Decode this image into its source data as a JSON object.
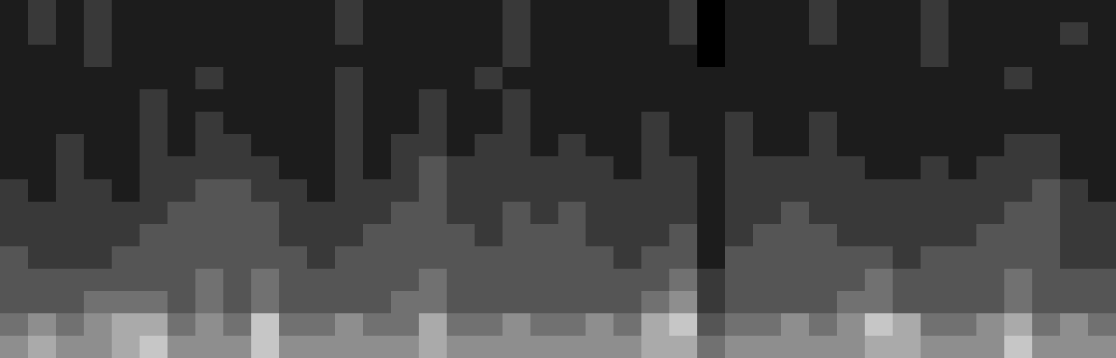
{
  "chart_data": {
    "type": "heatmap",
    "tick_labels": false,
    "zlim": [
      0,
      9
    ],
    "colors": [
      "#000000",
      "#ffffff"
    ],
    "cells": [
      [
        1,
        2,
        1,
        2,
        1,
        1,
        1,
        1,
        1,
        1,
        1,
        1,
        2,
        1,
        1,
        1,
        1,
        1,
        2,
        1,
        1,
        1,
        1,
        1,
        2,
        0,
        1,
        1,
        1,
        2,
        1,
        1,
        1,
        2,
        1,
        1,
        1,
        1,
        1,
        1
      ],
      [
        1,
        2,
        1,
        2,
        1,
        1,
        1,
        1,
        1,
        1,
        1,
        1,
        2,
        1,
        1,
        1,
        1,
        1,
        2,
        1,
        1,
        1,
        1,
        1,
        2,
        0,
        1,
        1,
        1,
        2,
        1,
        1,
        1,
        2,
        1,
        1,
        1,
        1,
        2,
        1
      ],
      [
        1,
        1,
        1,
        2,
        1,
        1,
        1,
        1,
        1,
        1,
        1,
        1,
        1,
        1,
        1,
        1,
        1,
        1,
        2,
        1,
        1,
        1,
        1,
        1,
        1,
        0,
        1,
        1,
        1,
        1,
        1,
        1,
        1,
        2,
        1,
        1,
        1,
        1,
        1,
        1
      ],
      [
        1,
        1,
        1,
        1,
        1,
        1,
        1,
        2,
        1,
        1,
        1,
        1,
        2,
        1,
        1,
        1,
        1,
        2,
        1,
        1,
        1,
        1,
        1,
        1,
        1,
        1,
        1,
        1,
        1,
        1,
        1,
        1,
        1,
        1,
        1,
        1,
        2,
        1,
        1,
        1
      ],
      [
        1,
        1,
        1,
        1,
        1,
        2,
        1,
        1,
        1,
        1,
        1,
        1,
        2,
        1,
        1,
        2,
        1,
        1,
        2,
        1,
        1,
        1,
        1,
        1,
        1,
        1,
        1,
        1,
        1,
        1,
        1,
        1,
        1,
        1,
        1,
        1,
        1,
        1,
        1,
        1
      ],
      [
        1,
        1,
        1,
        1,
        1,
        2,
        1,
        2,
        1,
        1,
        1,
        1,
        2,
        1,
        1,
        2,
        1,
        1,
        2,
        1,
        1,
        1,
        1,
        2,
        1,
        1,
        2,
        1,
        1,
        2,
        1,
        1,
        1,
        1,
        1,
        1,
        1,
        1,
        1,
        1
      ],
      [
        1,
        1,
        2,
        1,
        1,
        2,
        1,
        2,
        2,
        1,
        1,
        1,
        2,
        1,
        2,
        2,
        1,
        2,
        2,
        1,
        2,
        1,
        1,
        2,
        1,
        1,
        2,
        1,
        1,
        2,
        1,
        1,
        1,
        1,
        1,
        1,
        2,
        2,
        1,
        1
      ],
      [
        1,
        1,
        2,
        1,
        1,
        2,
        2,
        2,
        2,
        2,
        1,
        1,
        2,
        1,
        2,
        3,
        2,
        2,
        2,
        2,
        2,
        2,
        1,
        2,
        2,
        1,
        2,
        2,
        2,
        2,
        2,
        1,
        1,
        2,
        1,
        2,
        2,
        2,
        1,
        1
      ],
      [
        2,
        1,
        2,
        2,
        1,
        2,
        2,
        3,
        3,
        2,
        2,
        1,
        2,
        2,
        2,
        3,
        2,
        2,
        2,
        2,
        2,
        2,
        2,
        2,
        2,
        1,
        2,
        2,
        2,
        2,
        2,
        2,
        2,
        2,
        2,
        2,
        2,
        3,
        2,
        1
      ],
      [
        2,
        2,
        2,
        2,
        2,
        2,
        3,
        3,
        3,
        3,
        2,
        2,
        2,
        2,
        3,
        3,
        2,
        2,
        3,
        2,
        3,
        2,
        2,
        2,
        2,
        1,
        2,
        2,
        3,
        2,
        2,
        2,
        2,
        2,
        2,
        2,
        3,
        3,
        2,
        2
      ],
      [
        2,
        2,
        2,
        2,
        2,
        3,
        3,
        3,
        3,
        3,
        2,
        2,
        2,
        3,
        3,
        3,
        3,
        2,
        3,
        3,
        3,
        2,
        2,
        2,
        3,
        1,
        2,
        3,
        3,
        3,
        2,
        2,
        2,
        2,
        2,
        3,
        3,
        3,
        2,
        2
      ],
      [
        3,
        2,
        2,
        2,
        3,
        3,
        3,
        3,
        3,
        3,
        3,
        2,
        3,
        3,
        3,
        3,
        3,
        3,
        3,
        3,
        3,
        3,
        2,
        3,
        3,
        1,
        3,
        3,
        3,
        3,
        3,
        3,
        2,
        3,
        3,
        3,
        3,
        3,
        2,
        2
      ],
      [
        3,
        3,
        3,
        3,
        3,
        3,
        3,
        4,
        3,
        4,
        3,
        3,
        3,
        3,
        3,
        4,
        3,
        3,
        3,
        3,
        3,
        3,
        3,
        3,
        4,
        2,
        3,
        3,
        3,
        3,
        3,
        4,
        3,
        3,
        3,
        3,
        4,
        3,
        3,
        3
      ],
      [
        3,
        3,
        3,
        4,
        4,
        4,
        3,
        4,
        3,
        4,
        3,
        3,
        3,
        3,
        4,
        4,
        3,
        3,
        3,
        3,
        3,
        3,
        3,
        4,
        5,
        2,
        3,
        3,
        3,
        3,
        4,
        4,
        3,
        3,
        3,
        3,
        4,
        3,
        3,
        3
      ],
      [
        4,
        5,
        4,
        5,
        6,
        6,
        4,
        5,
        4,
        7,
        4,
        4,
        5,
        4,
        4,
        6,
        4,
        4,
        5,
        4,
        4,
        5,
        4,
        6,
        7,
        3,
        4,
        4,
        5,
        4,
        5,
        7,
        6,
        4,
        4,
        5,
        6,
        4,
        5,
        4
      ],
      [
        5,
        6,
        5,
        5,
        6,
        7,
        5,
        5,
        5,
        7,
        5,
        5,
        5,
        5,
        5,
        6,
        5,
        5,
        5,
        5,
        5,
        5,
        5,
        6,
        6,
        4,
        5,
        5,
        5,
        5,
        5,
        6,
        6,
        5,
        5,
        5,
        7,
        5,
        5,
        5
      ]
    ]
  }
}
